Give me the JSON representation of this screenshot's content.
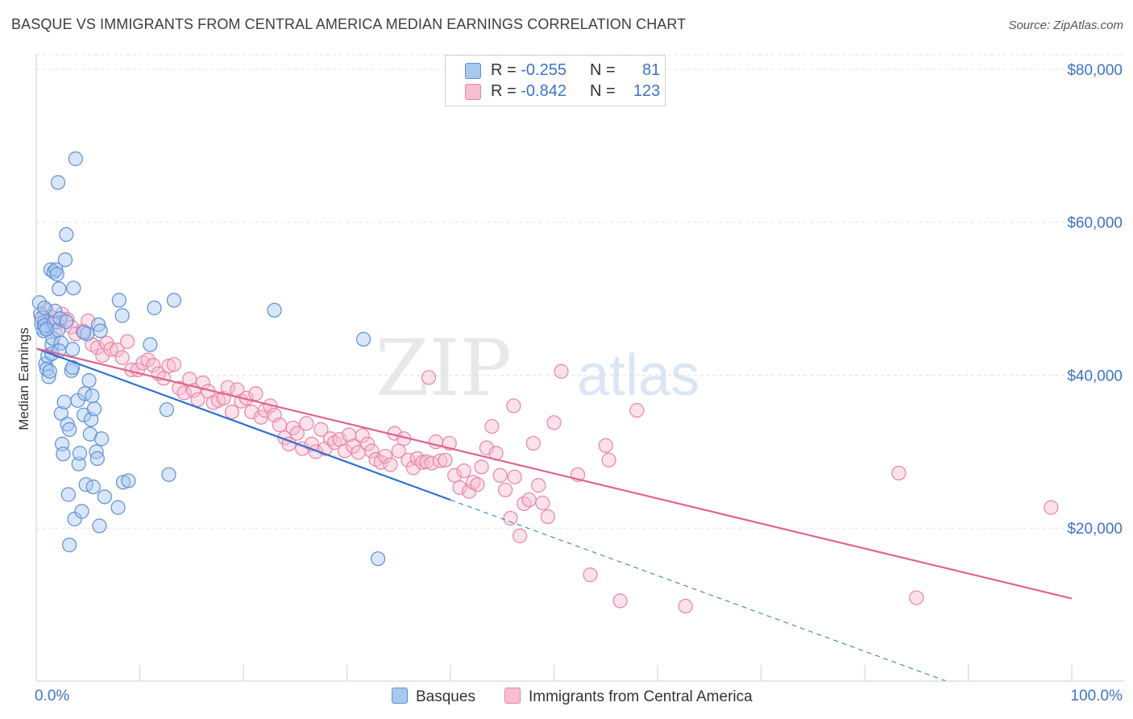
{
  "title": "BASQUE VS IMMIGRANTS FROM CENTRAL AMERICA MEDIAN EARNINGS CORRELATION CHART",
  "source": "Source: ZipAtlas.com",
  "watermark": {
    "zip": "ZIP",
    "atlas": "atlas"
  },
  "colors": {
    "basque_fill": "#a9c8f0",
    "basque_stroke": "#5b8fd8",
    "basque_line": "#2f6fcf",
    "cam_fill": "#f7bdd0",
    "cam_stroke": "#e884a6",
    "cam_line": "#e0648e",
    "grid": "#e3e3e3",
    "tick_label": "#3e73c6"
  },
  "legend_top": {
    "rows": [
      {
        "r_label": "R = ",
        "r_value": "-0.255",
        "n_label": "N = ",
        "n_value": "81"
      },
      {
        "r_label": "R = ",
        "r_value": "-0.842",
        "n_label": "N = ",
        "n_value": "123"
      }
    ]
  },
  "legend_bottom": {
    "items": [
      "Basques",
      "Immigrants from Central America"
    ]
  },
  "chart_data": {
    "type": "scatter",
    "title": "BASQUE VS IMMIGRANTS FROM CENTRAL AMERICA MEDIAN EARNINGS CORRELATION CHART",
    "xlabel": "",
    "ylabel": "Median Earnings",
    "xlim": [
      0,
      100
    ],
    "ylim": [
      0,
      82000
    ],
    "x_tick_labels": [
      "0.0%",
      "100.0%"
    ],
    "y_ticks": [
      20000,
      40000,
      60000,
      80000
    ],
    "y_tick_labels": [
      "$20,000",
      "$40,000",
      "$60,000",
      "$80,000"
    ],
    "grid": true,
    "legend_placement": "top-center",
    "series": [
      {
        "name": "Basques",
        "r": -0.255,
        "n": 81,
        "trend": {
          "x0": 0,
          "y0": 43500,
          "x1": 40,
          "y1": 23700,
          "dashed_to_x": 100,
          "dashed_to_y": -6000
        },
        "points": [
          [
            0.3,
            49500
          ],
          [
            0.4,
            48000
          ],
          [
            0.5,
            46800
          ],
          [
            0.6,
            46200
          ],
          [
            0.6,
            47500
          ],
          [
            0.7,
            45800
          ],
          [
            0.8,
            46500
          ],
          [
            0.9,
            41500
          ],
          [
            1.0,
            40800
          ],
          [
            1.1,
            42500
          ],
          [
            1.2,
            39800
          ],
          [
            1.3,
            40500
          ],
          [
            1.4,
            53800
          ],
          [
            1.5,
            44000
          ],
          [
            1.6,
            44800
          ],
          [
            1.7,
            53500
          ],
          [
            1.7,
            46900
          ],
          [
            1.8,
            48400
          ],
          [
            1.9,
            53800
          ],
          [
            2.0,
            53200
          ],
          [
            2.1,
            65200
          ],
          [
            2.1,
            45900
          ],
          [
            2.2,
            51300
          ],
          [
            2.3,
            47400
          ],
          [
            2.4,
            35000
          ],
          [
            2.4,
            44200
          ],
          [
            2.5,
            31000
          ],
          [
            2.6,
            29700
          ],
          [
            2.7,
            36500
          ],
          [
            2.8,
            55100
          ],
          [
            2.9,
            58400
          ],
          [
            3.0,
            33600
          ],
          [
            3.1,
            24400
          ],
          [
            3.2,
            32900
          ],
          [
            3.2,
            17800
          ],
          [
            3.4,
            40600
          ],
          [
            3.5,
            41000
          ],
          [
            3.6,
            51400
          ],
          [
            3.7,
            21200
          ],
          [
            3.8,
            68300
          ],
          [
            4.0,
            36700
          ],
          [
            4.1,
            28400
          ],
          [
            4.2,
            29800
          ],
          [
            4.4,
            22200
          ],
          [
            4.6,
            34800
          ],
          [
            4.7,
            37600
          ],
          [
            4.8,
            25700
          ],
          [
            4.9,
            45400
          ],
          [
            5.1,
            39300
          ],
          [
            5.2,
            32300
          ],
          [
            5.3,
            34200
          ],
          [
            5.4,
            37300
          ],
          [
            5.5,
            25400
          ],
          [
            5.6,
            35600
          ],
          [
            5.8,
            30000
          ],
          [
            5.9,
            29100
          ],
          [
            6.0,
            46600
          ],
          [
            6.1,
            20300
          ],
          [
            6.3,
            31700
          ],
          [
            6.6,
            24100
          ],
          [
            7.9,
            22700
          ],
          [
            8.0,
            49800
          ],
          [
            8.3,
            47800
          ],
          [
            8.4,
            26000
          ],
          [
            8.9,
            26200
          ],
          [
            11.0,
            44000
          ],
          [
            11.4,
            48800
          ],
          [
            12.6,
            35500
          ],
          [
            12.8,
            27000
          ],
          [
            13.3,
            49800
          ],
          [
            23.0,
            48500
          ],
          [
            31.6,
            44700
          ],
          [
            33.0,
            16000
          ],
          [
            1.0,
            46000
          ],
          [
            0.8,
            48800
          ],
          [
            1.5,
            42800
          ],
          [
            2.9,
            47000
          ],
          [
            4.6,
            45600
          ],
          [
            6.2,
            45800
          ],
          [
            3.5,
            43400
          ],
          [
            2.2,
            43200
          ]
        ]
      },
      {
        "name": "Immigrants from Central America",
        "r": -0.842,
        "n": 123,
        "trend": {
          "x0": 0,
          "y0": 43500,
          "x1": 100,
          "y1": 10800
        },
        "points": [
          [
            0.5,
            47500
          ],
          [
            0.8,
            46900
          ],
          [
            1.0,
            48500
          ],
          [
            1.4,
            47600
          ],
          [
            1.8,
            45800
          ],
          [
            2.0,
            46900
          ],
          [
            2.5,
            48000
          ],
          [
            3.0,
            47300
          ],
          [
            3.4,
            46300
          ],
          [
            3.8,
            45400
          ],
          [
            4.5,
            45800
          ],
          [
            5.0,
            47100
          ],
          [
            5.4,
            44000
          ],
          [
            5.9,
            43600
          ],
          [
            6.4,
            42600
          ],
          [
            6.8,
            44200
          ],
          [
            7.2,
            43400
          ],
          [
            7.8,
            43300
          ],
          [
            8.3,
            42300
          ],
          [
            8.8,
            44400
          ],
          [
            9.2,
            40700
          ],
          [
            9.8,
            40700
          ],
          [
            10.3,
            41600
          ],
          [
            10.8,
            42000
          ],
          [
            11.3,
            41300
          ],
          [
            11.8,
            40200
          ],
          [
            12.3,
            39600
          ],
          [
            12.8,
            41200
          ],
          [
            13.3,
            41400
          ],
          [
            13.8,
            38300
          ],
          [
            14.3,
            37700
          ],
          [
            14.8,
            39500
          ],
          [
            15.2,
            38000
          ],
          [
            15.6,
            36800
          ],
          [
            16.1,
            39000
          ],
          [
            16.6,
            37900
          ],
          [
            17.1,
            36400
          ],
          [
            17.6,
            36700
          ],
          [
            18.1,
            37000
          ],
          [
            18.5,
            38400
          ],
          [
            18.9,
            35200
          ],
          [
            19.4,
            38100
          ],
          [
            19.8,
            36600
          ],
          [
            20.3,
            37000
          ],
          [
            20.8,
            35200
          ],
          [
            21.2,
            37600
          ],
          [
            21.7,
            34500
          ],
          [
            22.1,
            35400
          ],
          [
            22.6,
            36000
          ],
          [
            23.0,
            34800
          ],
          [
            23.5,
            33500
          ],
          [
            24.0,
            31800
          ],
          [
            24.4,
            31000
          ],
          [
            24.8,
            33100
          ],
          [
            25.2,
            32400
          ],
          [
            25.7,
            30400
          ],
          [
            26.1,
            33700
          ],
          [
            26.6,
            31000
          ],
          [
            27.0,
            30000
          ],
          [
            27.5,
            32900
          ],
          [
            27.9,
            30400
          ],
          [
            28.4,
            31700
          ],
          [
            28.8,
            31200
          ],
          [
            29.3,
            31600
          ],
          [
            29.8,
            30100
          ],
          [
            30.2,
            32200
          ],
          [
            30.6,
            30700
          ],
          [
            31.1,
            29900
          ],
          [
            31.5,
            32100
          ],
          [
            32.0,
            31000
          ],
          [
            32.4,
            30100
          ],
          [
            32.8,
            29000
          ],
          [
            33.3,
            28600
          ],
          [
            33.7,
            29400
          ],
          [
            34.2,
            28300
          ],
          [
            34.6,
            32400
          ],
          [
            35.0,
            30100
          ],
          [
            35.5,
            31700
          ],
          [
            35.9,
            28900
          ],
          [
            36.4,
            27900
          ],
          [
            36.8,
            29100
          ],
          [
            37.3,
            28600
          ],
          [
            37.7,
            28700
          ],
          [
            38.2,
            28500
          ],
          [
            38.6,
            31300
          ],
          [
            39.0,
            28800
          ],
          [
            39.5,
            28900
          ],
          [
            39.9,
            31100
          ],
          [
            40.4,
            26900
          ],
          [
            40.9,
            25300
          ],
          [
            41.3,
            27500
          ],
          [
            41.8,
            24800
          ],
          [
            42.2,
            26000
          ],
          [
            42.6,
            25700
          ],
          [
            43.0,
            28000
          ],
          [
            43.5,
            30500
          ],
          [
            44.0,
            33300
          ],
          [
            44.4,
            29800
          ],
          [
            44.8,
            26900
          ],
          [
            45.3,
            25000
          ],
          [
            45.8,
            21300
          ],
          [
            46.2,
            26700
          ],
          [
            46.7,
            19000
          ],
          [
            47.1,
            23200
          ],
          [
            47.6,
            23700
          ],
          [
            48.0,
            31100
          ],
          [
            48.5,
            25600
          ],
          [
            48.9,
            23300
          ],
          [
            49.4,
            21500
          ],
          [
            50.0,
            33800
          ],
          [
            50.7,
            40500
          ],
          [
            52.3,
            27000
          ],
          [
            53.5,
            13900
          ],
          [
            55.0,
            30800
          ],
          [
            55.3,
            28900
          ],
          [
            56.4,
            10500
          ],
          [
            58.0,
            35400
          ],
          [
            62.7,
            9800
          ],
          [
            83.3,
            27200
          ],
          [
            85.0,
            10900
          ],
          [
            98.0,
            22700
          ],
          [
            37.9,
            39700
          ],
          [
            46.1,
            36000
          ]
        ]
      }
    ]
  }
}
